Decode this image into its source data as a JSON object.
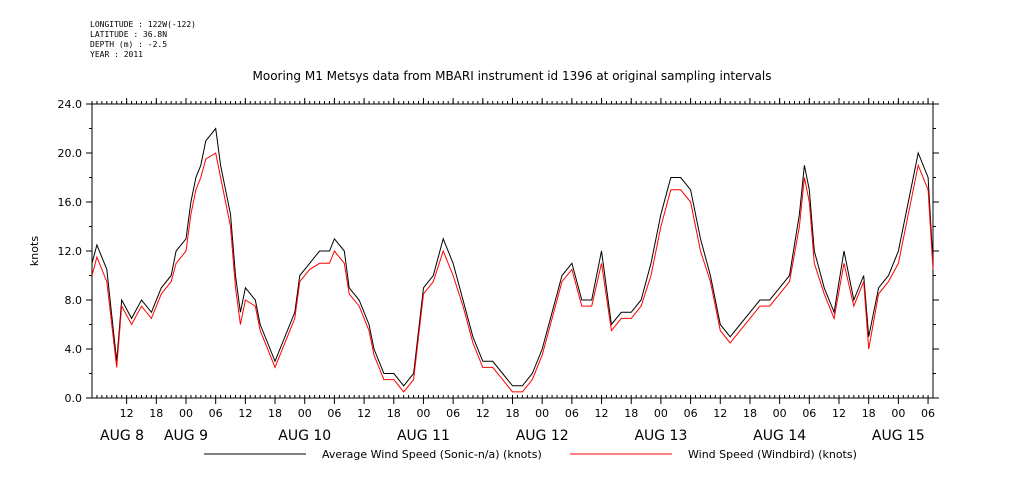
{
  "metadata": [
    {
      "key": "longitude",
      "text": "LONGITUDE : 122W(-122)"
    },
    {
      "key": "latitude",
      "text": "LATITUDE : 36.8N"
    },
    {
      "key": "depth",
      "text": "DEPTH (m) : -2.5"
    },
    {
      "key": "year",
      "text": "YEAR : 2011"
    }
  ],
  "chart_data": {
    "type": "line",
    "title": "Mooring M1 Metsys data from MBARI instrument id 1396 at original sampling intervals",
    "ylabel": "knots",
    "xlabel": "",
    "ylim": [
      0,
      24
    ],
    "yticks": [
      "0.0",
      "4.0",
      "8.0",
      "12.0",
      "16.0",
      "20.0",
      "24.0"
    ],
    "x_unit": "hours since AUG 8 00:00",
    "xlim": [
      5,
      175
    ],
    "hour_ticks": [
      "12",
      "18",
      "00",
      "06",
      "12",
      "18",
      "00",
      "06",
      "12",
      "18",
      "00",
      "06",
      "12",
      "18",
      "00",
      "06",
      "12",
      "18",
      "00",
      "06",
      "12",
      "18",
      "00",
      "06",
      "12",
      "18",
      "00",
      "06"
    ],
    "day_labels": [
      "AUG 8",
      "AUG 9",
      "AUG 10",
      "AUG 11",
      "AUG 12",
      "AUG 13",
      "AUG 14",
      "AUG 15"
    ],
    "legend_placement": "bottom",
    "series": [
      {
        "name": "Average Wind Speed (Sonic-n/a) (knots)",
        "color": "#000000",
        "x": [
          5,
          6,
          8,
          10,
          11,
          13,
          15,
          17,
          19,
          21,
          22,
          24,
          25,
          26,
          27,
          28,
          30,
          31,
          33,
          34,
          35,
          36,
          38,
          39,
          41,
          42,
          44,
          46,
          47,
          49,
          51,
          53,
          54,
          56,
          57,
          59,
          61,
          62,
          64,
          66,
          68,
          70,
          72,
          74,
          76,
          78,
          80,
          82,
          84,
          86,
          88,
          90,
          92,
          94,
          96,
          98,
          100,
          102,
          104,
          106,
          108,
          110,
          112,
          114,
          116,
          118,
          120,
          122,
          124,
          126,
          128,
          130,
          132,
          134,
          136,
          138,
          140,
          142,
          144,
          146,
          148,
          149,
          150,
          151,
          153,
          155,
          157,
          159,
          161,
          162,
          164,
          166,
          168,
          170,
          172,
          174,
          175
        ],
        "y": [
          11,
          12.5,
          10.5,
          3,
          8,
          6.5,
          8,
          7,
          9,
          10,
          12,
          13,
          16,
          18,
          19,
          21,
          22,
          19,
          15,
          10,
          7,
          9,
          8,
          6,
          4,
          3,
          5,
          7,
          10,
          11,
          12,
          12,
          13,
          12,
          9,
          8,
          6,
          4,
          2,
          2,
          1,
          2,
          9,
          10,
          13,
          11,
          8,
          5,
          3,
          3,
          2,
          1,
          1,
          2,
          4,
          7,
          10,
          11,
          8,
          8,
          12,
          6,
          7,
          7,
          8,
          11,
          15,
          18,
          18,
          17,
          13,
          10,
          6,
          5,
          6,
          7,
          8,
          8,
          9,
          10,
          15,
          19,
          17,
          12,
          9,
          7,
          12,
          8,
          10,
          5,
          9,
          10,
          12,
          16,
          20,
          18,
          11
        ]
      },
      {
        "name": "Wind Speed (Windbird) (knots)",
        "color": "#ff0000",
        "x": [
          5,
          6,
          8,
          10,
          11,
          13,
          15,
          17,
          19,
          21,
          22,
          24,
          25,
          26,
          27,
          28,
          30,
          31,
          33,
          34,
          35,
          36,
          38,
          39,
          41,
          42,
          44,
          46,
          47,
          49,
          51,
          53,
          54,
          56,
          57,
          59,
          61,
          62,
          64,
          66,
          68,
          70,
          72,
          74,
          76,
          78,
          80,
          82,
          84,
          86,
          88,
          90,
          92,
          94,
          96,
          98,
          100,
          102,
          104,
          106,
          108,
          110,
          112,
          114,
          116,
          118,
          120,
          122,
          124,
          126,
          128,
          130,
          132,
          134,
          136,
          138,
          140,
          142,
          144,
          146,
          148,
          149,
          150,
          151,
          153,
          155,
          157,
          159,
          161,
          162,
          164,
          166,
          168,
          170,
          172,
          174,
          175
        ],
        "y": [
          10,
          11.5,
          9.5,
          2.5,
          7.5,
          6,
          7.5,
          6.5,
          8.5,
          9.5,
          11,
          12,
          15,
          17,
          18,
          19.5,
          20,
          18,
          14,
          9,
          6,
          8,
          7.5,
          5.5,
          3.5,
          2.5,
          4.5,
          6.5,
          9.5,
          10.5,
          11,
          11,
          12,
          11,
          8.5,
          7.5,
          5.5,
          3.5,
          1.5,
          1.5,
          0.5,
          1.5,
          8.5,
          9.5,
          12,
          10,
          7.5,
          4.5,
          2.5,
          2.5,
          1.5,
          0.5,
          0.5,
          1.5,
          3.5,
          6.5,
          9.5,
          10.5,
          7.5,
          7.5,
          11,
          5.5,
          6.5,
          6.5,
          7.5,
          10,
          14,
          17,
          17,
          16,
          12,
          9.5,
          5.5,
          4.5,
          5.5,
          6.5,
          7.5,
          7.5,
          8.5,
          9.5,
          14,
          18,
          16,
          11,
          8.5,
          6.5,
          11,
          7.5,
          9.5,
          4,
          8.5,
          9.5,
          11,
          15,
          19,
          17,
          10.5
        ]
      }
    ]
  }
}
